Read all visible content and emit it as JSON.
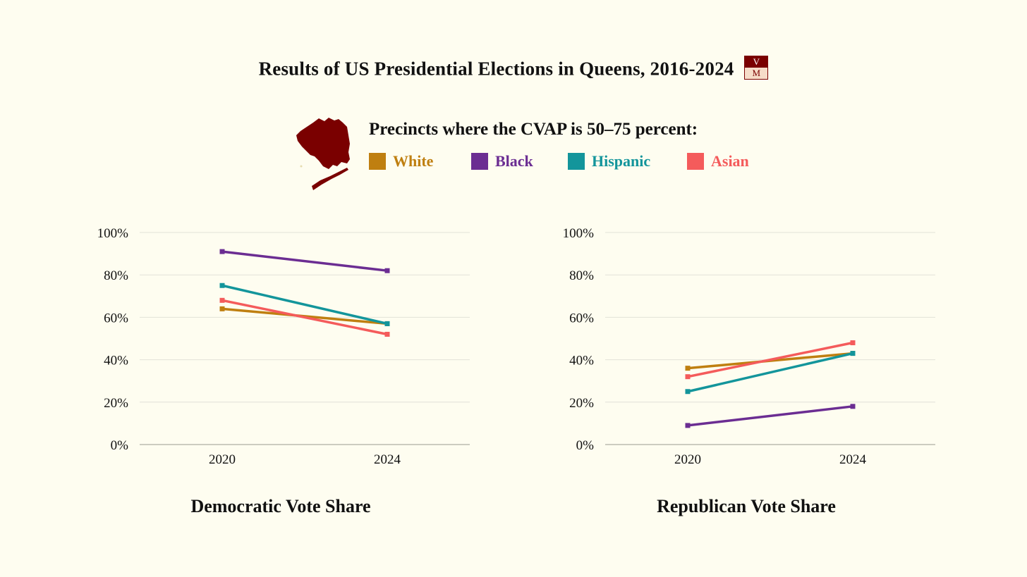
{
  "title": "Results of US Presidential Elections in Queens, 2016-2024",
  "logo": {
    "top": "V",
    "bottom": "M"
  },
  "legend": {
    "heading": "Precincts where the CVAP is 50–75 percent:",
    "items": [
      {
        "label": "White",
        "color": "#bf7f10"
      },
      {
        "label": "Black",
        "color": "#6b2d92"
      },
      {
        "label": "Hispanic",
        "color": "#13959b"
      },
      {
        "label": "Asian",
        "color": "#f45b5b"
      }
    ]
  },
  "colors": {
    "background": "#fefdf0",
    "map": "#7a0000",
    "grid": "#e2e2d8"
  },
  "chart_data": [
    {
      "type": "line",
      "title": "Democratic Vote Share",
      "categories": [
        "2020",
        "2024"
      ],
      "y_ticks": [
        "0%",
        "20%",
        "40%",
        "60%",
        "80%",
        "100%"
      ],
      "ylim": [
        0,
        100
      ],
      "grid": true,
      "series": [
        {
          "name": "White",
          "values": [
            64,
            57
          ],
          "color": "#bf7f10"
        },
        {
          "name": "Black",
          "values": [
            91,
            82
          ],
          "color": "#6b2d92"
        },
        {
          "name": "Hispanic",
          "values": [
            75,
            57
          ],
          "color": "#13959b"
        },
        {
          "name": "Asian",
          "values": [
            68,
            52
          ],
          "color": "#f45b5b"
        }
      ]
    },
    {
      "type": "line",
      "title": "Republican Vote Share",
      "categories": [
        "2020",
        "2024"
      ],
      "y_ticks": [
        "0%",
        "20%",
        "40%",
        "60%",
        "80%",
        "100%"
      ],
      "ylim": [
        0,
        100
      ],
      "grid": true,
      "series": [
        {
          "name": "White",
          "values": [
            36,
            43
          ],
          "color": "#bf7f10"
        },
        {
          "name": "Black",
          "values": [
            9,
            18
          ],
          "color": "#6b2d92"
        },
        {
          "name": "Hispanic",
          "values": [
            25,
            43
          ],
          "color": "#13959b"
        },
        {
          "name": "Asian",
          "values": [
            32,
            48
          ],
          "color": "#f45b5b"
        }
      ]
    }
  ]
}
